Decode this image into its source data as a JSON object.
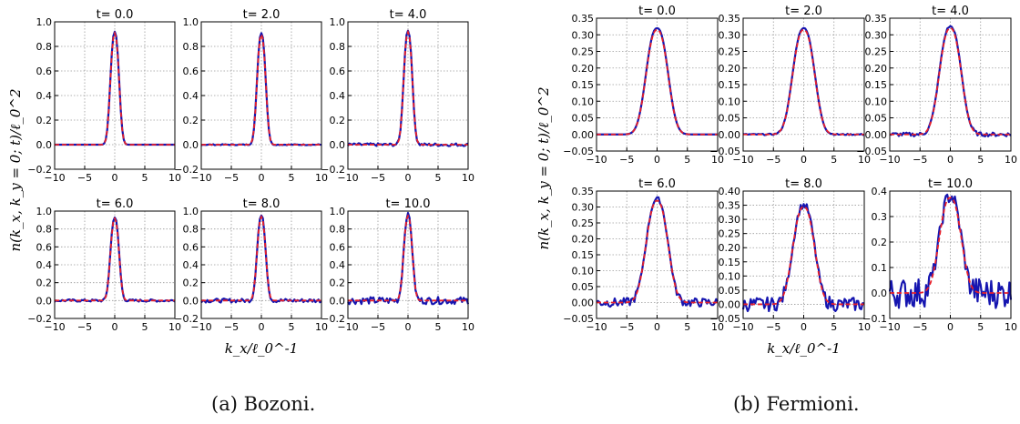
{
  "captions": [
    "(a) Bozoni.",
    "(b) Fermioni."
  ],
  "chart_data": [
    {
      "type": "line",
      "group": "(a) Bozoni.",
      "ylabel": "n(k_x, k_y = 0; t)/ℓ_0^2",
      "xlabel": "k_x/ℓ_0^-1",
      "xlim": [
        -10,
        10
      ],
      "ylim": [
        -0.2,
        1.0
      ],
      "yticks": [
        "−0.2",
        "0.0",
        "0.2",
        "0.4",
        "0.6",
        "0.8",
        "1.0"
      ],
      "xticks": [
        "−10",
        "−5",
        "0",
        "5",
        "10"
      ],
      "grid": true,
      "peak_width": 0.8,
      "panels": [
        {
          "title": "t= 0.0",
          "peak": 0.92,
          "noise": 0.0
        },
        {
          "title": "t= 2.0",
          "peak": 0.91,
          "noise": 0.004
        },
        {
          "title": "t= 4.0",
          "peak": 0.93,
          "noise": 0.012
        },
        {
          "title": "t= 6.0",
          "peak": 0.93,
          "noise": 0.014
        },
        {
          "title": "t= 8.0",
          "peak": 0.95,
          "noise": 0.022
        },
        {
          "title": "t= 10.0",
          "peak": 0.96,
          "noise": 0.04
        }
      ]
    },
    {
      "type": "line",
      "group": "(b) Fermioni.",
      "ylabel": "n(k_x, k_y = 0; t)/ℓ_0^2",
      "xlabel": "k_x/ℓ_0^-1",
      "xlim": [
        -10,
        10
      ],
      "peak_width": 2.0,
      "grid": true,
      "xticks": [
        "−10",
        "−5",
        "0",
        "5",
        "10"
      ],
      "panels": [
        {
          "title": "t= 0.0",
          "peak": 0.32,
          "noise": 0.0,
          "ylim": [
            -0.05,
            0.35
          ],
          "yticks": [
            "−0.05",
            "0.00",
            "0.05",
            "0.10",
            "0.15",
            "0.20",
            "0.25",
            "0.30",
            "0.35"
          ]
        },
        {
          "title": "t= 2.0",
          "peak": 0.32,
          "noise": 0.002,
          "ylim": [
            -0.05,
            0.35
          ],
          "yticks": [
            "−0.05",
            "0.00",
            "0.05",
            "0.10",
            "0.15",
            "0.20",
            "0.25",
            "0.30",
            "0.35"
          ]
        },
        {
          "title": "t= 4.0",
          "peak": 0.325,
          "noise": 0.006,
          "ylim": [
            -0.05,
            0.35
          ],
          "yticks": [
            "−0.05",
            "0.00",
            "0.05",
            "0.10",
            "0.15",
            "0.20",
            "0.25",
            "0.30",
            "0.35"
          ]
        },
        {
          "title": "t= 6.0",
          "peak": 0.325,
          "noise": 0.014,
          "ylim": [
            -0.05,
            0.35
          ],
          "yticks": [
            "−0.05",
            "0.00",
            "0.05",
            "0.10",
            "0.15",
            "0.20",
            "0.25",
            "0.30",
            "0.35"
          ]
        },
        {
          "title": "t= 8.0",
          "peak": 0.35,
          "noise": 0.025,
          "ylim": [
            -0.05,
            0.4
          ],
          "yticks": [
            "−0.05",
            "0.00",
            "0.05",
            "0.10",
            "0.15",
            "0.20",
            "0.25",
            "0.30",
            "0.35",
            "0.40"
          ]
        },
        {
          "title": "t= 10.0",
          "peak": 0.38,
          "noise": 0.06,
          "ylim": [
            -0.1,
            0.4
          ],
          "yticks": [
            "−0.1",
            "0.0",
            "0.1",
            "0.2",
            "0.3",
            "0.4"
          ]
        }
      ]
    }
  ],
  "colors": {
    "simulation": "#1515b0",
    "reference": "#e8202a",
    "grid": "#9a9a9a",
    "axis": "#000000"
  }
}
